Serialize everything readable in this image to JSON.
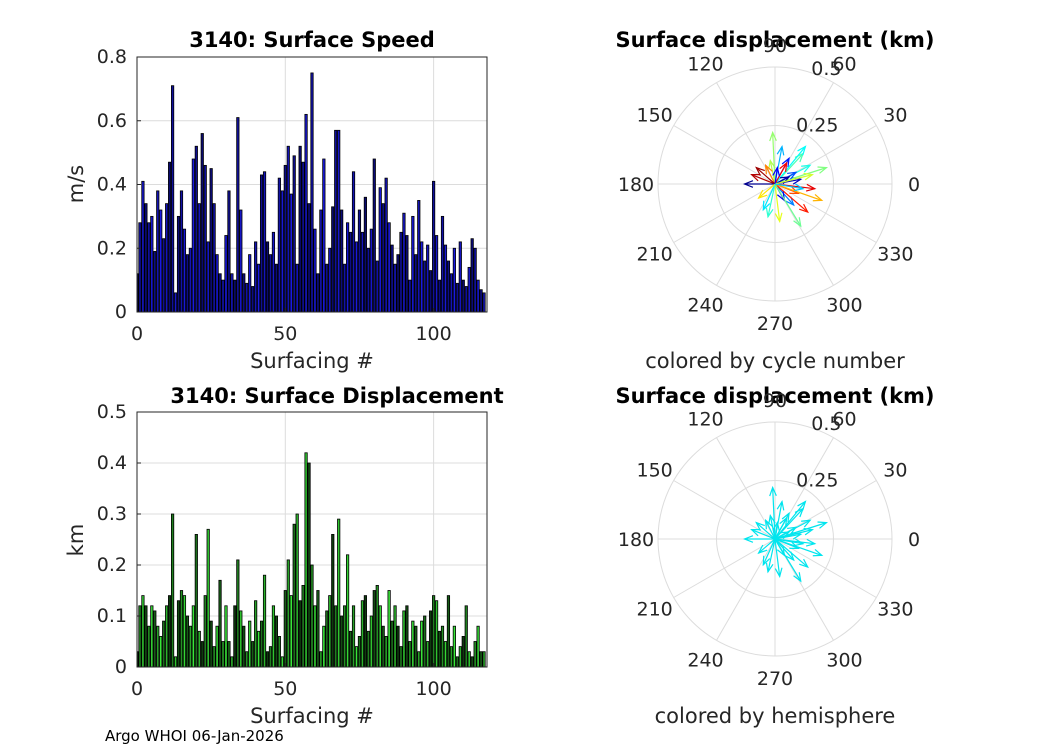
{
  "footer": "Argo WHOI 06-Jan-2026",
  "chart_data": [
    {
      "type": "bar",
      "title": "3140: Surface Speed",
      "xlabel": "Surfacing #",
      "ylabel": "m/s",
      "xlim": [
        0,
        118
      ],
      "ylim": [
        0,
        0.8
      ],
      "xticks": [
        "0",
        "50",
        "100"
      ],
      "yticks": [
        "0",
        "0.2",
        "0.4",
        "0.6",
        "0.8"
      ],
      "grid": true,
      "color_start": "#0a0a6e",
      "color_end": "#1a1ae0",
      "edge_color": "#000000",
      "values": [
        0.12,
        0.28,
        0.41,
        0.34,
        0.28,
        0.3,
        0.19,
        0.38,
        0.32,
        0.23,
        0.34,
        0.47,
        0.71,
        0.06,
        0.3,
        0.38,
        0.26,
        0.18,
        0.2,
        0.48,
        0.52,
        0.34,
        0.56,
        0.46,
        0.22,
        0.45,
        0.34,
        0.18,
        0.12,
        0.1,
        0.24,
        0.38,
        0.12,
        0.1,
        0.61,
        0.32,
        0.12,
        0.09,
        0.18,
        0.08,
        0.22,
        0.15,
        0.43,
        0.44,
        0.22,
        0.18,
        0.25,
        0.15,
        0.42,
        0.38,
        0.46,
        0.52,
        0.37,
        0.49,
        0.15,
        0.52,
        0.47,
        0.62,
        0.34,
        0.75,
        0.26,
        0.12,
        0.32,
        0.48,
        0.15,
        0.2,
        0.33,
        0.57,
        0.57,
        0.32,
        0.15,
        0.28,
        0.25,
        0.44,
        0.22,
        0.32,
        0.25,
        0.36,
        0.2,
        0.26,
        0.48,
        0.16,
        0.39,
        0.34,
        0.42,
        0.28,
        0.21,
        0.15,
        0.18,
        0.25,
        0.31,
        0.24,
        0.1,
        0.3,
        0.18,
        0.35,
        0.22,
        0.16,
        0.21,
        0.13,
        0.41,
        0.24,
        0.1,
        0.3,
        0.21,
        0.16,
        0.12,
        0.2,
        0.09,
        0.22,
        0.1,
        0.08,
        0.14,
        0.23,
        0.2,
        0.1,
        0.07,
        0.06
      ]
    },
    {
      "type": "bar",
      "title": "3140: Surface Displacement",
      "xlabel": "Surfacing #",
      "ylabel": "km",
      "xlim": [
        0,
        118
      ],
      "ylim": [
        0,
        0.5
      ],
      "xticks": [
        "0",
        "50",
        "100"
      ],
      "yticks": [
        "0",
        "0.1",
        "0.2",
        "0.3",
        "0.4",
        "0.5"
      ],
      "grid": true,
      "color_start": "#0e3a0e",
      "color_end": "#39e639",
      "edge_color": "#000000",
      "values": [
        0.03,
        0.12,
        0.14,
        0.12,
        0.08,
        0.12,
        0.11,
        0.08,
        0.06,
        0.09,
        0.12,
        0.14,
        0.3,
        0.02,
        0.13,
        0.15,
        0.14,
        0.1,
        0.08,
        0.12,
        0.26,
        0.07,
        0.05,
        0.14,
        0.27,
        0.09,
        0.04,
        0.08,
        0.17,
        0.05,
        0.12,
        0.05,
        0.02,
        0.12,
        0.21,
        0.11,
        0.08,
        0.03,
        0.09,
        0.05,
        0.13,
        0.07,
        0.09,
        0.18,
        0.03,
        0.04,
        0.12,
        0.1,
        0.06,
        0.02,
        0.15,
        0.21,
        0.14,
        0.28,
        0.3,
        0.13,
        0.16,
        0.42,
        0.4,
        0.2,
        0.12,
        0.15,
        0.03,
        0.08,
        0.11,
        0.14,
        0.26,
        0.12,
        0.29,
        0.1,
        0.12,
        0.22,
        0.07,
        0.12,
        0.04,
        0.06,
        0.13,
        0.14,
        0.07,
        0.1,
        0.15,
        0.16,
        0.12,
        0.08,
        0.06,
        0.15,
        0.09,
        0.12,
        0.08,
        0.04,
        0.11,
        0.12,
        0.05,
        0.09,
        0.08,
        0.03,
        0.09,
        0.1,
        0.05,
        0.11,
        0.14,
        0.13,
        0.07,
        0.08,
        0.05,
        0.14,
        0.04,
        0.08,
        0.02,
        0.04,
        0.06,
        0.12,
        0.03,
        0.02,
        0.05,
        0.08,
        0.03,
        0.03
      ]
    },
    {
      "type": "polar-compass",
      "title": "Surface displacement (km)",
      "caption": "colored by cycle number",
      "r_max": 0.5,
      "r_labels": [
        "0.25",
        "0.5"
      ],
      "angle_labels": [
        "0",
        "30",
        "60",
        "90",
        "120",
        "150",
        "180",
        "210",
        "240",
        "270",
        "300",
        "330"
      ],
      "colormap": [
        "#00008f",
        "#0000ff",
        "#0080ff",
        "#00ffff",
        "#80ff80",
        "#ffff00",
        "#ff8000",
        "#ff0000",
        "#800000"
      ],
      "arrows": [
        {
          "u": 0.11,
          "v": 0.02,
          "c": 0.05
        },
        {
          "u": -0.1,
          "v": 0.04,
          "c": 0.95
        },
        {
          "u": 0.08,
          "v": -0.09,
          "c": 0.25
        },
        {
          "u": -0.02,
          "v": 0.1,
          "c": 0.55
        },
        {
          "u": 0.15,
          "v": 0.08,
          "c": 0.4
        },
        {
          "u": 0.1,
          "v": -0.04,
          "c": 0.8
        },
        {
          "u": -0.05,
          "v": -0.11,
          "c": 0.35
        },
        {
          "u": 0.22,
          "v": 0.07,
          "c": 0.5
        },
        {
          "u": 0.03,
          "v": 0.16,
          "c": 0.3
        },
        {
          "u": 0.02,
          "v": -0.16,
          "c": 0.6
        },
        {
          "u": -0.13,
          "v": 0.0,
          "c": 0.0
        },
        {
          "u": 0.06,
          "v": 0.11,
          "c": 0.15
        },
        {
          "u": 0.17,
          "v": -0.02,
          "c": 0.9
        },
        {
          "u": -0.04,
          "v": 0.08,
          "c": 0.75
        },
        {
          "u": 0.12,
          "v": 0.13,
          "c": 0.45
        },
        {
          "u": -0.07,
          "v": -0.06,
          "c": 0.65
        },
        {
          "u": 0.09,
          "v": 0.05,
          "c": 0.2
        },
        {
          "u": 0.14,
          "v": -0.12,
          "c": 0.85
        },
        {
          "u": -0.01,
          "v": 0.22,
          "c": 0.52
        },
        {
          "u": 0.04,
          "v": -0.07,
          "c": 0.1
        },
        {
          "u": 0.13,
          "v": 0.16,
          "c": 0.38
        },
        {
          "u": 0.11,
          "v": -0.18,
          "c": 0.48
        },
        {
          "u": -0.08,
          "v": 0.07,
          "c": 0.97
        },
        {
          "u": 0.2,
          "v": -0.07,
          "c": 0.7
        },
        {
          "u": 0.06,
          "v": 0.03,
          "c": 0.02
        },
        {
          "u": 0.05,
          "v": 0.09,
          "c": 0.88
        },
        {
          "u": 0.16,
          "v": 0.04,
          "c": 0.58
        },
        {
          "u": -0.03,
          "v": -0.14,
          "c": 0.42
        },
        {
          "u": 0.01,
          "v": 0.07,
          "c": 0.12
        },
        {
          "u": 0.12,
          "v": -0.02,
          "c": 0.32
        }
      ]
    },
    {
      "type": "polar-compass",
      "title": "Surface displacement (km)",
      "caption": "colored by hemisphere",
      "r_max": 0.5,
      "r_labels": [
        "0.25",
        "0.5"
      ],
      "angle_labels": [
        "0",
        "30",
        "60",
        "90",
        "120",
        "150",
        "180",
        "210",
        "240",
        "270",
        "300",
        "330"
      ],
      "colormap": [
        "#00e5ee"
      ],
      "arrows": [
        {
          "u": 0.11,
          "v": 0.02,
          "c": 0
        },
        {
          "u": -0.1,
          "v": 0.04,
          "c": 0
        },
        {
          "u": 0.08,
          "v": -0.09,
          "c": 0
        },
        {
          "u": -0.02,
          "v": 0.1,
          "c": 0
        },
        {
          "u": 0.15,
          "v": 0.08,
          "c": 0
        },
        {
          "u": 0.1,
          "v": -0.04,
          "c": 0
        },
        {
          "u": -0.05,
          "v": -0.11,
          "c": 0
        },
        {
          "u": 0.22,
          "v": 0.07,
          "c": 0
        },
        {
          "u": 0.03,
          "v": 0.16,
          "c": 0
        },
        {
          "u": 0.02,
          "v": -0.16,
          "c": 0
        },
        {
          "u": -0.13,
          "v": 0.0,
          "c": 0
        },
        {
          "u": 0.06,
          "v": 0.11,
          "c": 0
        },
        {
          "u": 0.17,
          "v": -0.02,
          "c": 0
        },
        {
          "u": -0.04,
          "v": 0.08,
          "c": 0
        },
        {
          "u": 0.12,
          "v": 0.13,
          "c": 0
        },
        {
          "u": -0.07,
          "v": -0.06,
          "c": 0
        },
        {
          "u": 0.09,
          "v": 0.05,
          "c": 0
        },
        {
          "u": 0.14,
          "v": -0.12,
          "c": 0
        },
        {
          "u": -0.01,
          "v": 0.22,
          "c": 0
        },
        {
          "u": 0.04,
          "v": -0.07,
          "c": 0
        },
        {
          "u": 0.13,
          "v": 0.16,
          "c": 0
        },
        {
          "u": 0.11,
          "v": -0.18,
          "c": 0
        },
        {
          "u": -0.08,
          "v": 0.07,
          "c": 0
        },
        {
          "u": 0.2,
          "v": -0.07,
          "c": 0
        },
        {
          "u": 0.06,
          "v": 0.03,
          "c": 0
        },
        {
          "u": 0.05,
          "v": 0.09,
          "c": 0
        },
        {
          "u": 0.16,
          "v": 0.04,
          "c": 0
        },
        {
          "u": -0.03,
          "v": -0.14,
          "c": 0
        },
        {
          "u": 0.01,
          "v": 0.07,
          "c": 0
        },
        {
          "u": 0.12,
          "v": -0.02,
          "c": 0
        }
      ]
    }
  ]
}
